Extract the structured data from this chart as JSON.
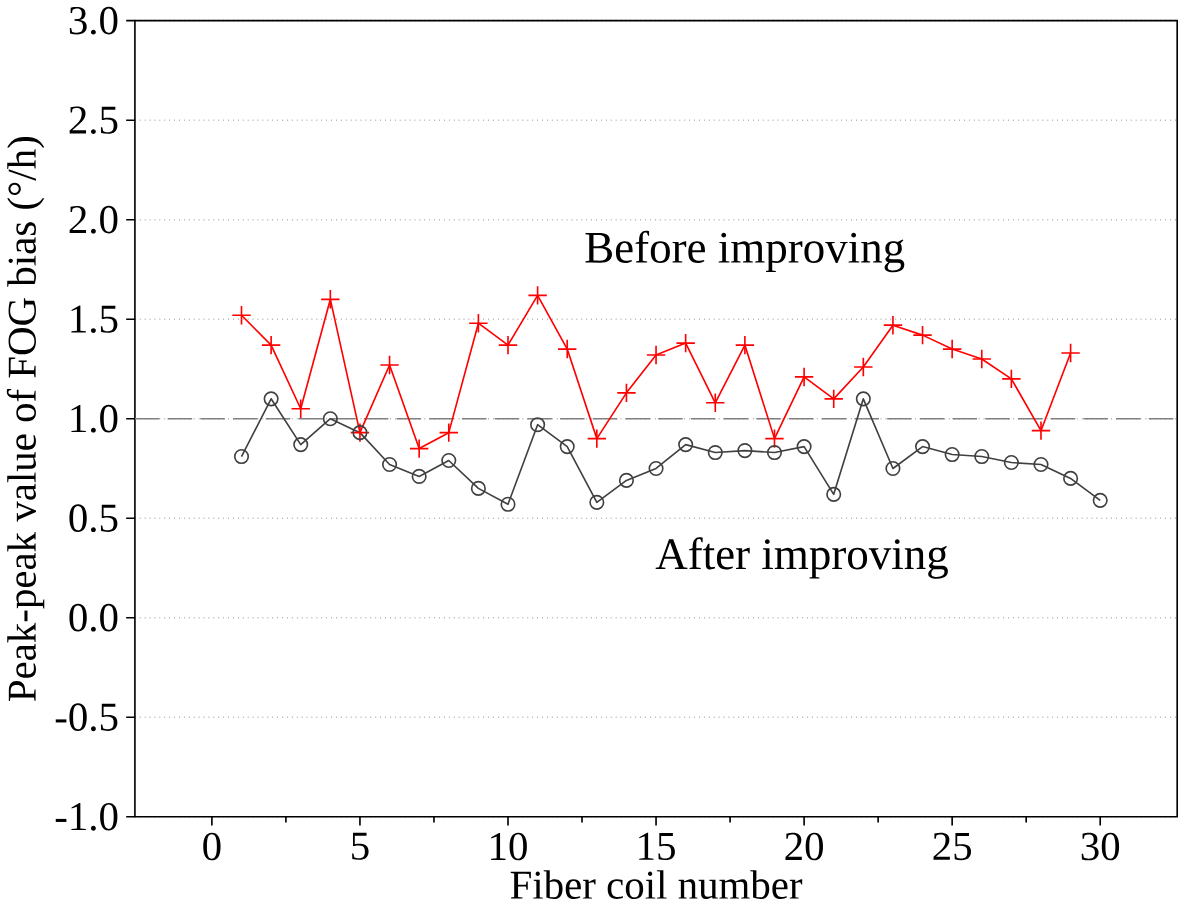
{
  "chart_data": {
    "type": "line",
    "xlabel": "Fiber coil number",
    "ylabel": "Peak-peak value of FOG bias (°/h)",
    "xlim": [
      -2.6,
      32.6
    ],
    "xticks": [
      0,
      5,
      10,
      15,
      20,
      25,
      30
    ],
    "ylim": [
      -1.0,
      3.0
    ],
    "yticks": [
      {
        "value": -1.0,
        "label": "-1.0"
      },
      {
        "value": -0.5,
        "label": "-0.5"
      },
      {
        "value": 0.0,
        "label": "0.0"
      },
      {
        "value": 0.5,
        "label": "0.5"
      },
      {
        "value": 1.0,
        "label": "1.0"
      },
      {
        "value": 1.5,
        "label": "1.5"
      },
      {
        "value": 2.0,
        "label": "2.0"
      },
      {
        "value": 2.5,
        "label": "2.5"
      },
      {
        "value": 3.0,
        "label": "3.0"
      }
    ],
    "grid": "y",
    "ref_lines": [
      {
        "axis": "y",
        "value": 1.0,
        "color": "#808080",
        "line_style": "dashed"
      }
    ],
    "series": [
      {
        "name": "Before improving",
        "color": "#ff0000",
        "marker": "cross",
        "x": [
          1,
          2,
          3,
          4,
          5,
          6,
          7,
          8,
          9,
          10,
          11,
          12,
          13,
          14,
          15,
          16,
          17,
          18,
          19,
          20,
          21,
          22,
          23,
          24,
          25,
          26,
          27,
          28,
          29
        ],
        "values": [
          1.52,
          1.37,
          1.05,
          1.6,
          0.93,
          1.27,
          0.85,
          0.93,
          1.48,
          1.37,
          1.62,
          1.35,
          0.9,
          1.13,
          1.32,
          1.38,
          1.08,
          1.37,
          0.9,
          1.21,
          1.1,
          1.26,
          1.47,
          1.42,
          1.35,
          1.3,
          1.2,
          0.94,
          1.33
        ]
      },
      {
        "name": "After improving",
        "color": "#404040",
        "marker": "circle",
        "x": [
          1,
          2,
          3,
          4,
          5,
          6,
          7,
          8,
          9,
          10,
          11,
          12,
          13,
          14,
          15,
          16,
          17,
          18,
          19,
          20,
          21,
          22,
          23,
          24,
          25,
          26,
          27,
          28,
          29,
          30
        ],
        "values": [
          0.81,
          1.1,
          0.87,
          1.0,
          0.93,
          0.77,
          0.71,
          0.79,
          0.65,
          0.57,
          0.97,
          0.86,
          0.58,
          0.69,
          0.75,
          0.87,
          0.83,
          0.84,
          0.83,
          0.86,
          0.62,
          1.1,
          0.75,
          0.86,
          0.82,
          0.81,
          0.78,
          0.77,
          0.7,
          0.59
        ]
      }
    ]
  }
}
